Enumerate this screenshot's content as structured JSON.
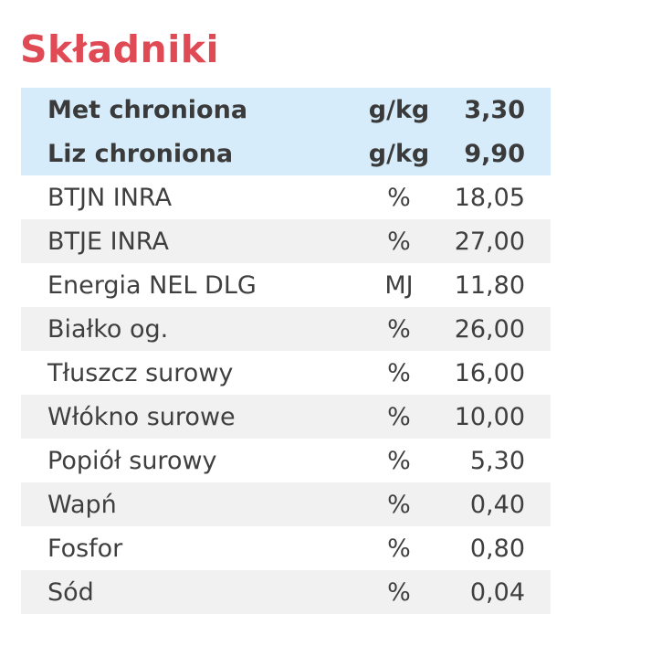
{
  "title": "Składniki",
  "highlighted_rows": [
    {
      "name": "Met chroniona",
      "unit": "g/kg",
      "value": "3,30"
    },
    {
      "name": "Liz chroniona",
      "unit": "g/kg",
      "value": "9,90"
    }
  ],
  "rows": [
    {
      "name": "BTJN INRA",
      "unit": "%",
      "value": "18,05"
    },
    {
      "name": "BTJE INRA",
      "unit": "%",
      "value": "27,00"
    },
    {
      "name": "Energia NEL DLG",
      "unit": "MJ",
      "value": "11,80"
    },
    {
      "name": "Białko og.",
      "unit": "%",
      "value": "26,00"
    },
    {
      "name": "Tłuszcz surowy",
      "unit": "%",
      "value": "16,00"
    },
    {
      "name": "Włókno surowe",
      "unit": "%",
      "value": "10,00"
    },
    {
      "name": "Popiół surowy",
      "unit": "%",
      "value": "5,30"
    },
    {
      "name": "Wapń",
      "unit": "%",
      "value": "0,40"
    },
    {
      "name": "Fosfor",
      "unit": "%",
      "value": "0,80"
    },
    {
      "name": "Sód",
      "unit": "%",
      "value": "0,04"
    }
  ],
  "colors": {
    "title": "#e04a55",
    "highlight_background": "#d6ecfb",
    "shaded_row": "#f1f1f1",
    "text": "#3f3f3f"
  }
}
